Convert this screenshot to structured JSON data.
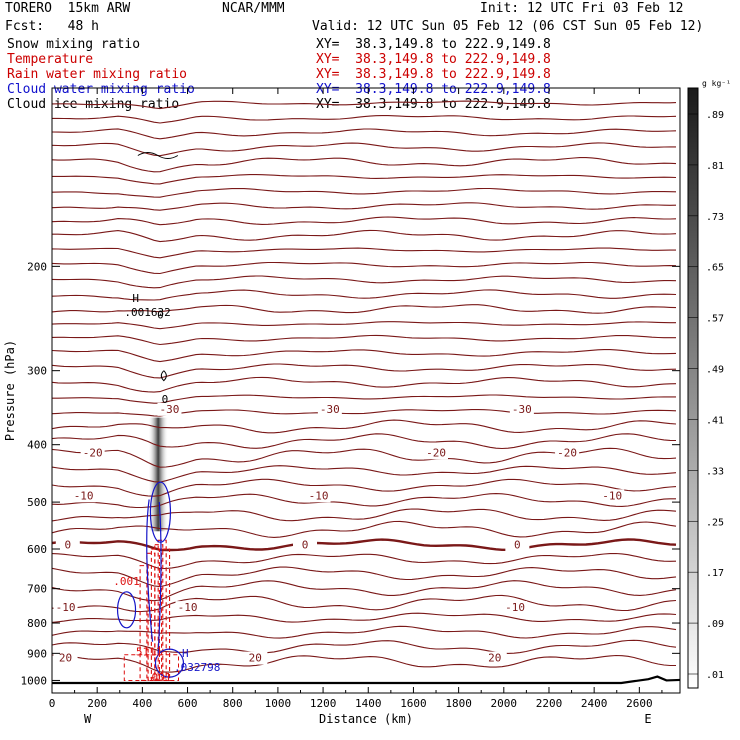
{
  "header": {
    "model": "TORERO  15km ARW",
    "center": "NCAR/MMM",
    "init": "Init: 12 UTC Fri 03 Feb 12",
    "fcst": "Fcst:   48 h",
    "valid": "Valid: 12 UTC Sun 05 Feb 12 (06 CST Sun 05 Feb 12)"
  },
  "legend": [
    {
      "label": "Snow mixing ratio",
      "xy": "XY=  38.3,149.8 to 222.9,149.8",
      "color": "#000000"
    },
    {
      "label": "Temperature",
      "xy": "XY=  38.3,149.8 to 222.9,149.8",
      "color": "#cc0000"
    },
    {
      "label": "Rain water mixing ratio",
      "xy": "XY=  38.3,149.8 to 222.9,149.8",
      "color": "#cc0000"
    },
    {
      "label": "Cloud water mixing ratio",
      "xy": "XY=  38.3,149.8 to 222.9,149.8",
      "color": "#1010cc"
    },
    {
      "label": "Cloud ice mixing ratio",
      "xy": "XY=  38.3,149.8 to 222.9,149.8",
      "color": "#000000"
    }
  ],
  "colors": {
    "temperature": "#7a1818",
    "rain": "#dd1010",
    "cloud_water": "#1414c8",
    "terrain": "#000000"
  },
  "chart_data": {
    "type": "contour cross-section",
    "xlabel": "Distance (km)",
    "ylabel": "Pressure (hPa)",
    "xlim": [
      0,
      2780
    ],
    "ylim": [
      1050,
      100
    ],
    "y_scale": "log",
    "x_ticks": [
      0,
      200,
      400,
      600,
      800,
      1000,
      1200,
      1400,
      1600,
      1800,
      2000,
      2200,
      2400,
      2600
    ],
    "y_ticks": [
      200,
      300,
      400,
      500,
      600,
      700,
      800,
      900,
      1000
    ],
    "west_label": "W",
    "east_label": "E",
    "colorbar": {
      "unit": "g kg⁻¹",
      "ticks": [
        ".01",
        ".09",
        ".17",
        ".25",
        ".33",
        ".41",
        ".49",
        ".57",
        ".65",
        ".73",
        ".81",
        ".89"
      ]
    },
    "temperature_isotherms": [
      {
        "label": "-30",
        "pressure": 348
      },
      {
        "label": "-20",
        "pressure": 412
      },
      {
        "label": "-10",
        "pressure": 487
      },
      {
        "label": "0",
        "pressure": 590
      },
      {
        "label": "-10",
        "pressure": 752
      },
      {
        "label": "20",
        "pressure": 915
      }
    ],
    "max_labels": [
      {
        "label": "H",
        "value": ".001632",
        "x_km": 400,
        "pressure": 235
      },
      {
        "label": "H",
        "value": ".032798",
        "x_km": 620,
        "pressure": 935
      }
    ],
    "contour_labels": [
      ".001",
      "5111",
      ".001",
      "0",
      "0"
    ],
    "snow_plume": {
      "x_km": 470,
      "p_top": 360,
      "p_bottom": 560
    }
  }
}
